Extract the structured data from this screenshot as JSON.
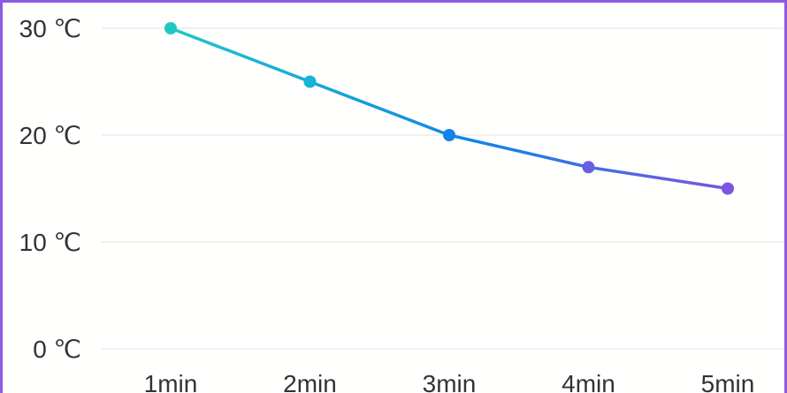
{
  "chart_data": {
    "type": "line",
    "categories": [
      "1min",
      "2min",
      "3min",
      "4min",
      "5min"
    ],
    "values": [
      30,
      25,
      20,
      17,
      15
    ],
    "y_ticks": [
      "0 ℃",
      "10 ℃",
      "20 ℃",
      "30 ℃"
    ],
    "y_tick_values": [
      0,
      10,
      20,
      30
    ],
    "ylim": [
      0,
      30
    ],
    "grid": true,
    "legend": "none",
    "colors": {
      "gradient_start": "#20c7c5",
      "gradient_mid": "#1183e9",
      "gradient_end": "#7b55df",
      "grid": "#e7e7e7",
      "frame": "#8e5ae0"
    }
  }
}
